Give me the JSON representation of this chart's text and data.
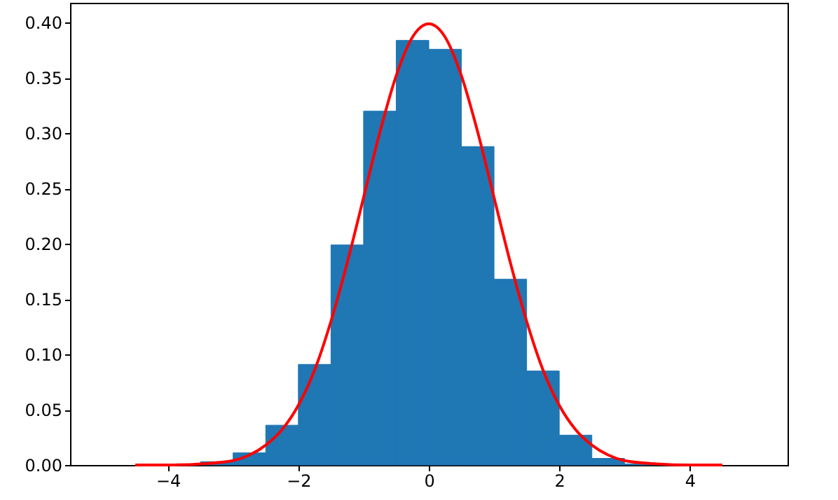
{
  "chart_data": {
    "type": "histogram",
    "bins": [
      -4.5,
      -4,
      -3.5,
      -3,
      -2.5,
      -2,
      -1.5,
      -1,
      -0.5,
      0,
      0.5,
      1,
      1.5,
      2,
      2.5,
      3,
      3.5,
      4,
      4.5
    ],
    "values": [
      null,
      null,
      0.003,
      0.011,
      0.036,
      0.091,
      0.199,
      0.32,
      0.384,
      0.376,
      0.288,
      0.168,
      0.085,
      0.027,
      0.006,
      0.001,
      null,
      null
    ],
    "color": "#1f77b4",
    "series": [
      {
        "type": "line",
        "color": "#ff0000",
        "x": [
          -4.5,
          -4,
          -3.5,
          -3,
          -2.75,
          -2.5,
          -2.25,
          -2,
          -1.75,
          -1.5,
          -1.25,
          -1,
          -0.75,
          -0.5,
          -0.25,
          0,
          0.25,
          0.5,
          0.75,
          1,
          1.25,
          1.5,
          1.75,
          2,
          2.25,
          2.5,
          2.75,
          3,
          3.5,
          4,
          4.5
        ],
        "values": [
          0.0,
          0.0,
          0.001,
          0.004,
          0.009,
          0.018,
          0.032,
          0.054,
          0.086,
          0.13,
          0.183,
          0.242,
          0.301,
          0.352,
          0.387,
          0.399,
          0.387,
          0.352,
          0.301,
          0.242,
          0.183,
          0.13,
          0.086,
          0.054,
          0.032,
          0.018,
          0.009,
          0.004,
          0.001,
          0.0,
          0.0
        ]
      }
    ],
    "xlim": [
      -5.5,
      5.5
    ],
    "xticks": [
      {
        "value": -4,
        "label": "−4"
      },
      {
        "value": -2,
        "label": "−2"
      },
      0,
      2,
      4
    ],
    "ylim": [
      0,
      0.418
    ],
    "yticks": [
      {
        "value": 0,
        "label": "0.00"
      },
      {
        "value": 0.05,
        "label": "0.05"
      },
      {
        "value": 0.1,
        "label": "0.10"
      },
      {
        "value": 0.15,
        "label": "0.15"
      },
      {
        "value": 0.2,
        "label": "0.20"
      },
      {
        "value": 0.25,
        "label": "0.25"
      },
      {
        "value": 0.3,
        "label": "0.30"
      },
      {
        "value": 0.35,
        "label": "0.35"
      },
      {
        "value": 0.4,
        "label": "0.40"
      }
    ],
    "grid": false,
    "line_style": "solid",
    "marker": "none"
  }
}
